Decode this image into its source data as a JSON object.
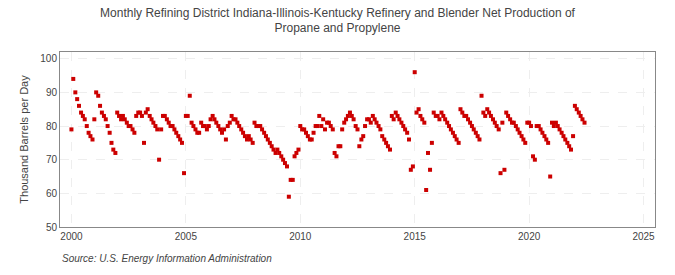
{
  "chart_data": {
    "type": "scatter",
    "title": "Monthly Refining District Indiana-Illinois-Kentucky Refinery and Blender Net Production of\nPropane and Propylene",
    "ylabel": "Thousand Barrels per Day",
    "annotations": [
      "Source: U.S. Energy Information Administration"
    ],
    "color": "#cc0000",
    "marker": "square",
    "grid": true,
    "xlim": [
      1999.5,
      2025.5
    ],
    "ylim": [
      50,
      102
    ],
    "xticks": [
      2000,
      2005,
      2010,
      2015,
      2020,
      2025
    ],
    "yticks": [
      50,
      60,
      70,
      80,
      90,
      100
    ],
    "x": [
      2000.0,
      2000.08,
      2000.17,
      2000.25,
      2000.33,
      2000.42,
      2000.5,
      2000.58,
      2000.67,
      2000.75,
      2000.83,
      2000.92,
      2001.0,
      2001.08,
      2001.17,
      2001.25,
      2001.33,
      2001.42,
      2001.5,
      2001.58,
      2001.67,
      2001.75,
      2001.83,
      2001.92,
      2002.0,
      2002.08,
      2002.17,
      2002.25,
      2002.33,
      2002.42,
      2002.5,
      2002.58,
      2002.67,
      2002.75,
      2002.83,
      2002.92,
      2003.0,
      2003.08,
      2003.17,
      2003.25,
      2003.33,
      2003.42,
      2003.5,
      2003.58,
      2003.67,
      2003.75,
      2003.83,
      2003.92,
      2004.0,
      2004.08,
      2004.17,
      2004.25,
      2004.33,
      2004.42,
      2004.5,
      2004.58,
      2004.67,
      2004.75,
      2004.83,
      2004.92,
      2005.0,
      2005.08,
      2005.17,
      2005.25,
      2005.33,
      2005.42,
      2005.5,
      2005.58,
      2005.67,
      2005.75,
      2005.83,
      2005.92,
      2006.0,
      2006.08,
      2006.17,
      2006.25,
      2006.33,
      2006.42,
      2006.5,
      2006.58,
      2006.67,
      2006.75,
      2006.83,
      2006.92,
      2007.0,
      2007.08,
      2007.17,
      2007.25,
      2007.33,
      2007.42,
      2007.5,
      2007.58,
      2007.67,
      2007.75,
      2007.83,
      2007.92,
      2008.0,
      2008.08,
      2008.17,
      2008.25,
      2008.33,
      2008.42,
      2008.5,
      2008.58,
      2008.67,
      2008.75,
      2008.83,
      2008.92,
      2009.0,
      2009.08,
      2009.17,
      2009.25,
      2009.33,
      2009.42,
      2009.5,
      2009.58,
      2009.67,
      2009.75,
      2009.83,
      2009.92,
      2010.0,
      2010.08,
      2010.17,
      2010.25,
      2010.33,
      2010.42,
      2010.5,
      2010.58,
      2010.67,
      2010.75,
      2010.83,
      2010.92,
      2011.0,
      2011.08,
      2011.17,
      2011.25,
      2011.33,
      2011.42,
      2011.5,
      2011.58,
      2011.67,
      2011.75,
      2011.83,
      2011.92,
      2012.0,
      2012.08,
      2012.17,
      2012.25,
      2012.33,
      2012.42,
      2012.5,
      2012.58,
      2012.67,
      2012.75,
      2012.83,
      2012.92,
      2013.0,
      2013.08,
      2013.17,
      2013.25,
      2013.33,
      2013.42,
      2013.5,
      2013.58,
      2013.67,
      2013.75,
      2013.83,
      2013.92,
      2014.0,
      2014.08,
      2014.17,
      2014.25,
      2014.33,
      2014.42,
      2014.5,
      2014.58,
      2014.67,
      2014.75,
      2014.83,
      2014.92,
      2015.0,
      2015.08,
      2015.17,
      2015.25,
      2015.33,
      2015.42,
      2015.5,
      2015.58,
      2015.67,
      2015.75,
      2015.83,
      2015.92,
      2016.0,
      2016.08,
      2016.17,
      2016.25,
      2016.33,
      2016.42,
      2016.5,
      2016.58,
      2016.67,
      2016.75,
      2016.83,
      2016.92,
      2017.0,
      2017.08,
      2017.17,
      2017.25,
      2017.33,
      2017.42,
      2017.5,
      2017.58,
      2017.67,
      2017.75,
      2017.83,
      2017.92,
      2018.0,
      2018.08,
      2018.17,
      2018.25,
      2018.33,
      2018.42,
      2018.5,
      2018.58,
      2018.67,
      2018.75,
      2018.83,
      2018.92,
      2019.0,
      2019.08,
      2019.17,
      2019.25,
      2019.33,
      2019.42,
      2019.5,
      2019.58,
      2019.67,
      2019.75,
      2019.83,
      2019.92,
      2020.0,
      2020.08,
      2020.17,
      2020.25,
      2020.33,
      2020.42,
      2020.5,
      2020.58,
      2020.67,
      2020.75,
      2020.83,
      2020.92,
      2021.0,
      2021.08,
      2021.17,
      2021.25,
      2021.33,
      2021.42,
      2021.5,
      2021.58,
      2021.67,
      2021.75,
      2021.83,
      2021.92,
      2022.0,
      2022.08,
      2022.17,
      2022.25,
      2022.33,
      2022.42
    ],
    "values": [
      79,
      94,
      90,
      88,
      86,
      84,
      83,
      82,
      80,
      78,
      77,
      76,
      82,
      90,
      89,
      86,
      84,
      83,
      82,
      80,
      78,
      75,
      73,
      72,
      84,
      83,
      82,
      83,
      82,
      81,
      80,
      80,
      79,
      78,
      83,
      84,
      84,
      83,
      75,
      84,
      85,
      83,
      82,
      81,
      80,
      79,
      70,
      79,
      83,
      83,
      82,
      81,
      80,
      80,
      79,
      78,
      77,
      76,
      75,
      66,
      83,
      83,
      89,
      81,
      80,
      79,
      78,
      78,
      81,
      80,
      80,
      79,
      80,
      82,
      83,
      82,
      81,
      80,
      79,
      78,
      79,
      76,
      80,
      81,
      83,
      82,
      82,
      81,
      80,
      79,
      78,
      77,
      76,
      77,
      76,
      75,
      81,
      80,
      80,
      80,
      79,
      78,
      77,
      76,
      75,
      74,
      73,
      72,
      73,
      72,
      71,
      70,
      69,
      68,
      59,
      64,
      64,
      71,
      72,
      73,
      80,
      79,
      79,
      78,
      77,
      76,
      76,
      78,
      80,
      80,
      83,
      80,
      82,
      79,
      81,
      81,
      80,
      79,
      72,
      71,
      74,
      74,
      79,
      81,
      82,
      83,
      84,
      83,
      82,
      80,
      79,
      74,
      76,
      77,
      80,
      82,
      82,
      81,
      83,
      82,
      81,
      80,
      79,
      77,
      76,
      75,
      74,
      73,
      83,
      82,
      84,
      83,
      82,
      81,
      80,
      79,
      78,
      76,
      67,
      68,
      96,
      84,
      85,
      83,
      82,
      81,
      61,
      72,
      67,
      75,
      84,
      83,
      83,
      82,
      84,
      83,
      82,
      81,
      80,
      79,
      78,
      77,
      76,
      75,
      85,
      84,
      83,
      83,
      82,
      81,
      80,
      79,
      78,
      77,
      76,
      89,
      84,
      83,
      85,
      84,
      83,
      82,
      81,
      80,
      79,
      66,
      81,
      67,
      84,
      83,
      82,
      81,
      81,
      80,
      79,
      78,
      77,
      76,
      75,
      81,
      81,
      80,
      71,
      70,
      80,
      80,
      79,
      78,
      77,
      76,
      75,
      65,
      81,
      80,
      81,
      80,
      79,
      78,
      77,
      76,
      75,
      74,
      73,
      77,
      86,
      85,
      84,
      83,
      82,
      81
    ]
  }
}
